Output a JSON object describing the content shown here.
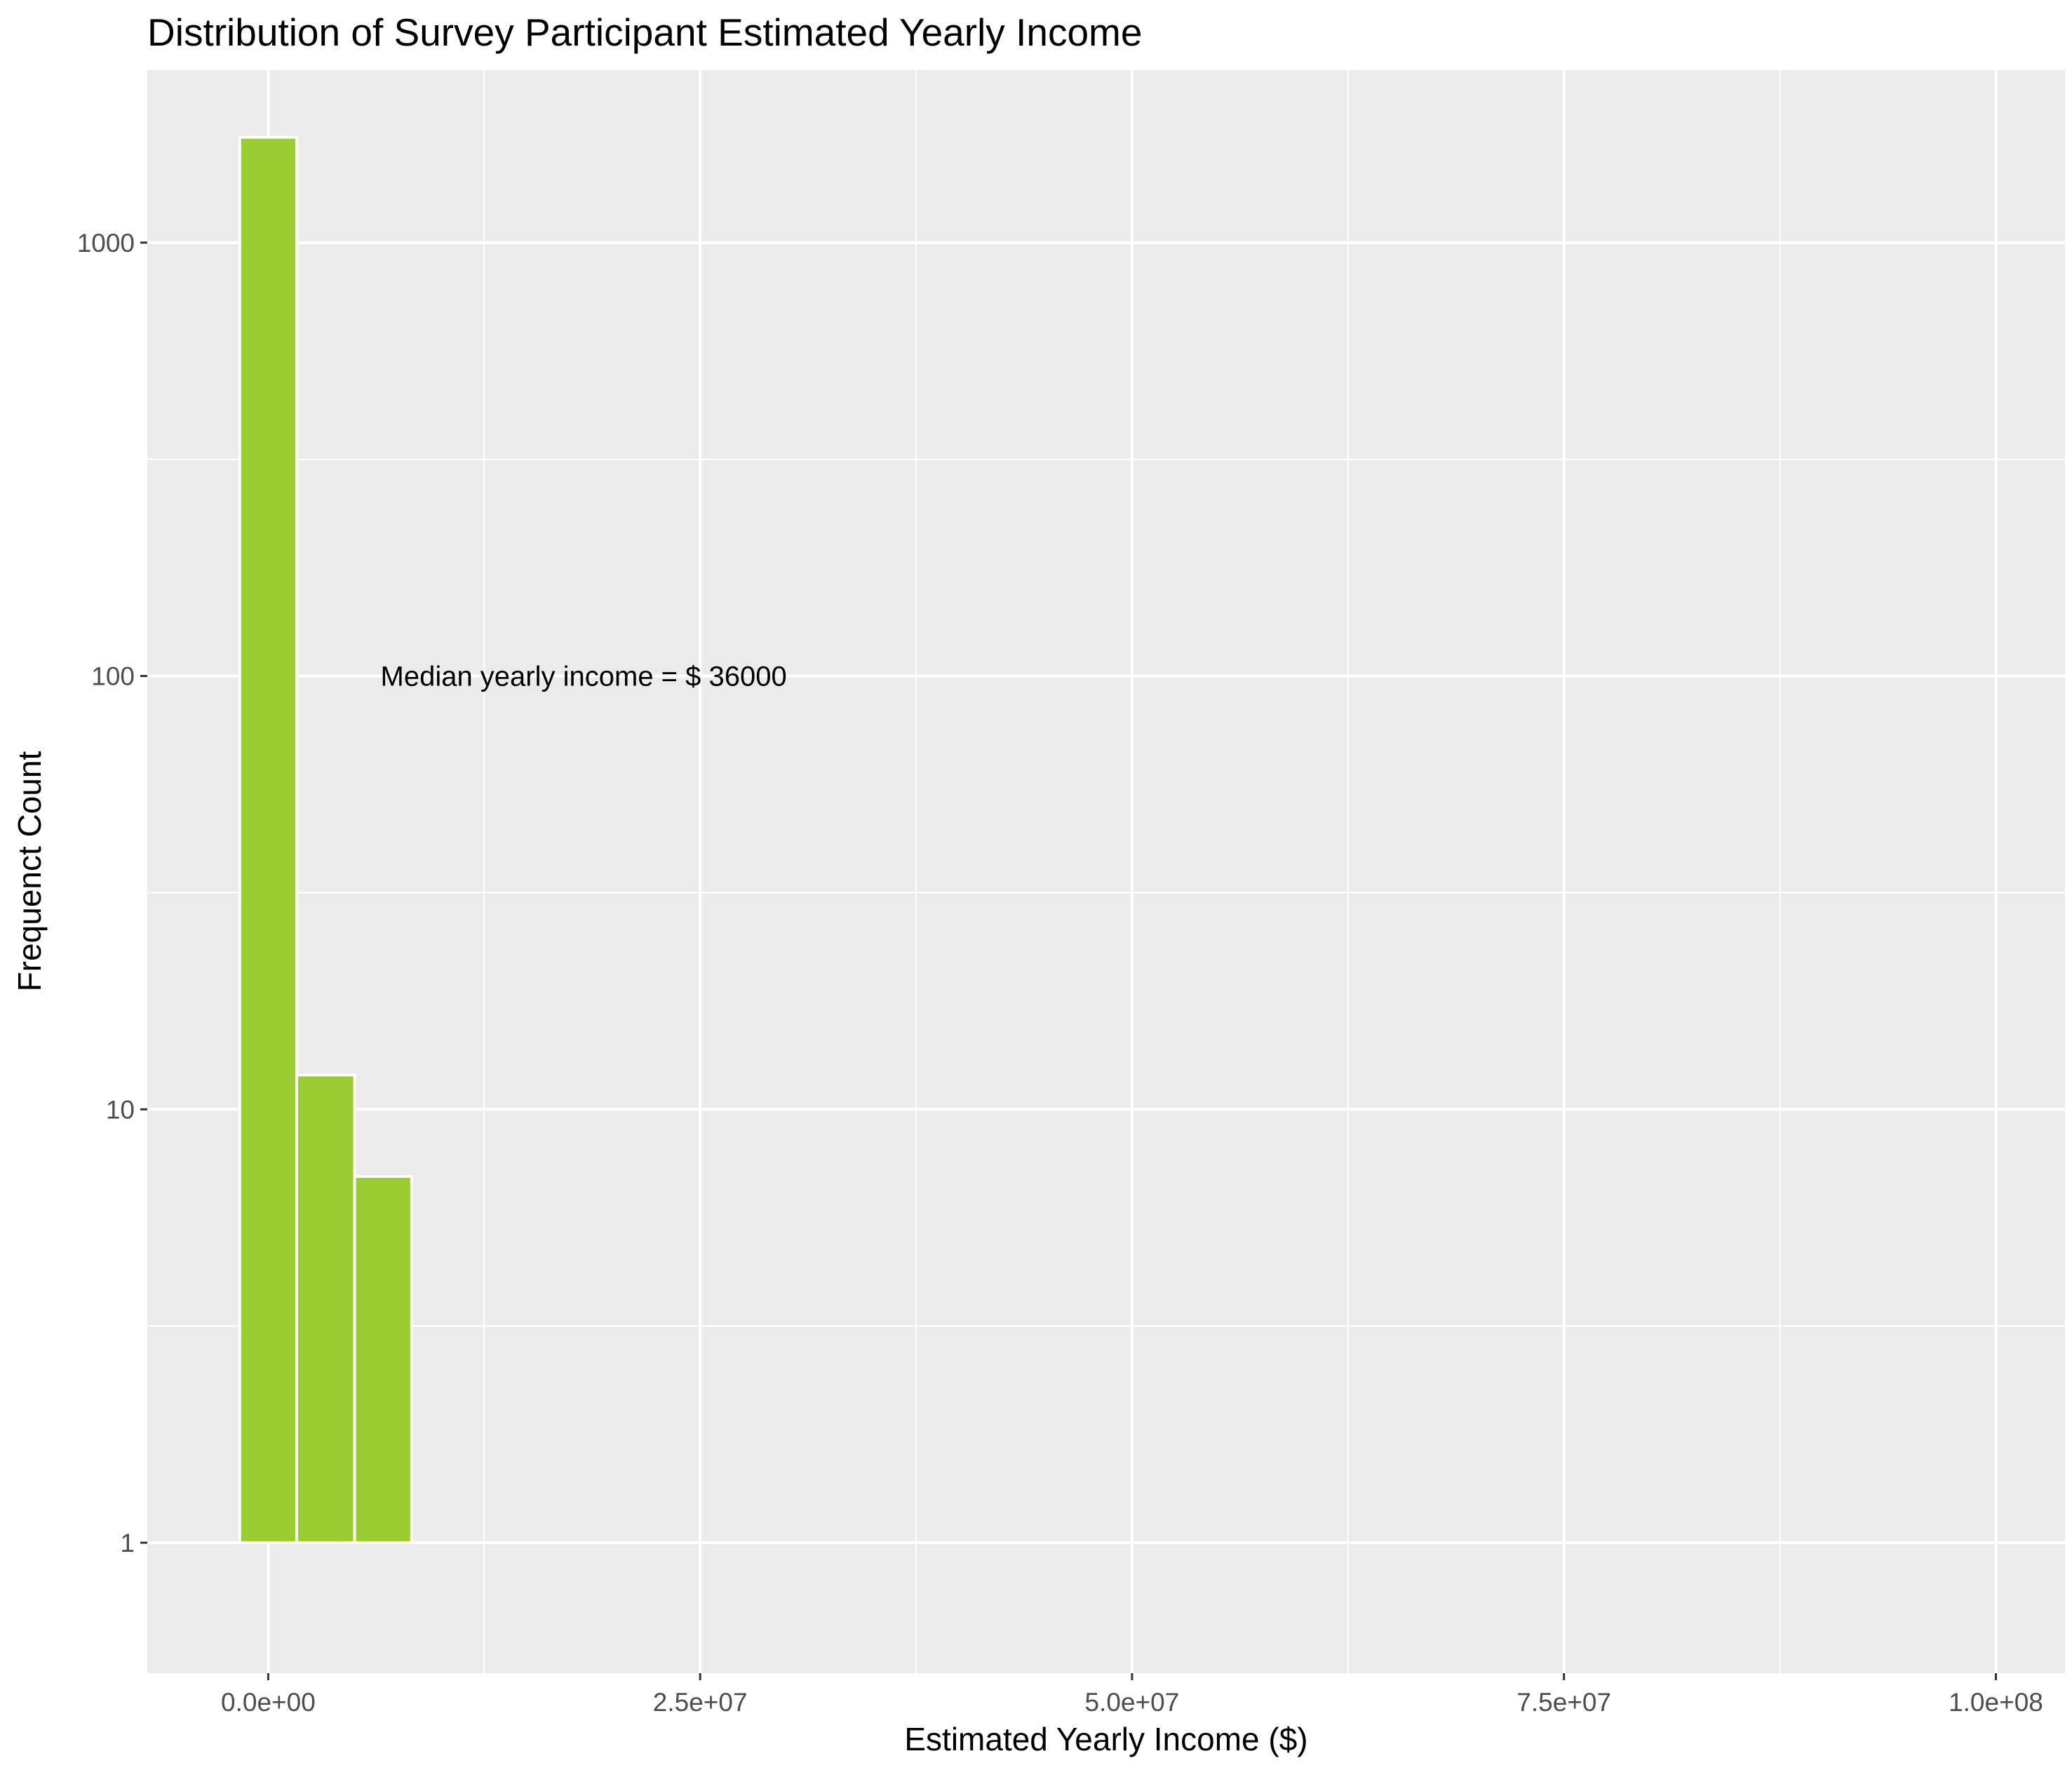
{
  "chart_data": {
    "type": "bar",
    "title": "Distribution of Survey Participant Estimated Yearly Income",
    "xlabel": "Estimated Yearly Income ($)",
    "ylabel": "Frequenct Count",
    "y_scale": "log10",
    "xlim": [
      -7000000,
      104000000
    ],
    "ylim": [
      0.5,
      2500
    ],
    "x_ticks": [
      0,
      25000000,
      50000000,
      75000000,
      100000000
    ],
    "x_tick_labels": [
      "0.0e+00",
      "2.5e+07",
      "5.0e+07",
      "7.5e+07",
      "1.0e+08"
    ],
    "y_ticks": [
      1,
      10,
      100,
      1000
    ],
    "y_tick_labels": [
      "1",
      "10",
      "100",
      "1000"
    ],
    "bins": [
      {
        "x0": -1650000,
        "x1": 1650000,
        "count": 1750
      },
      {
        "x0": 1650000,
        "x1": 5000000,
        "count": 12
      },
      {
        "x0": 5000000,
        "x1": 8300000,
        "count": 7
      }
    ],
    "annotation": {
      "text": "Median yearly income = $ 36000",
      "x": 6500000,
      "y": 100
    },
    "grid": true,
    "colors": {
      "bar_fill": "#9acd32",
      "bar_stroke": "#ffffff",
      "panel": "#ebebeb",
      "grid": "#ffffff"
    }
  }
}
